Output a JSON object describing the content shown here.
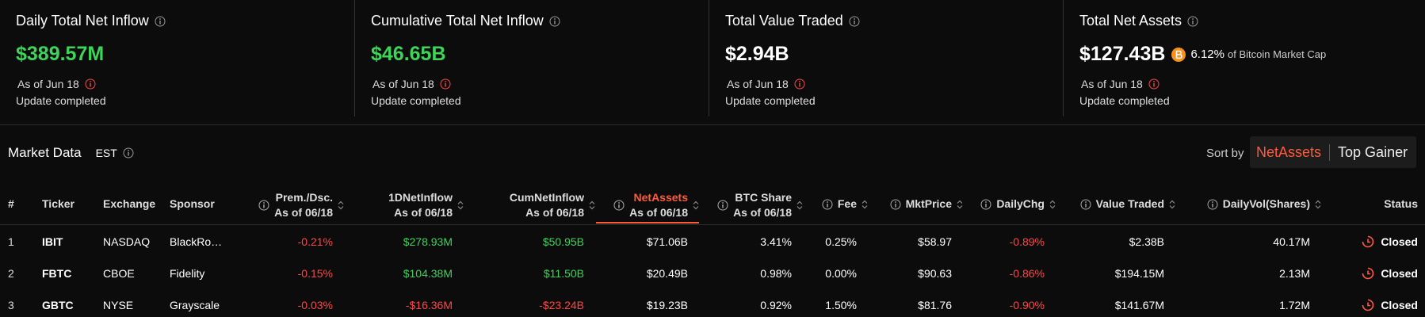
{
  "cards": [
    {
      "title": "Daily Total Net Inflow",
      "value": "$389.57M",
      "as_of": "As of Jun 18",
      "status": "Update completed"
    },
    {
      "title": "Cumulative Total Net Inflow",
      "value": "$46.65B",
      "as_of": "As of Jun 18",
      "status": "Update completed"
    },
    {
      "title": "Total Value Traded",
      "value": "$2.94B",
      "as_of": "As of Jun 18",
      "status": "Update completed"
    },
    {
      "title": "Total Net Assets",
      "value": "$127.43B",
      "btc_share": "6.12%",
      "btc_share_label": "of Bitcoin Market Cap",
      "as_of": "As of Jun 18",
      "status": "Update completed"
    }
  ],
  "market": {
    "title": "Market Data",
    "timezone": "EST",
    "sort_label": "Sort by",
    "sort_options": [
      "NetAssets",
      "Top Gainer"
    ],
    "columns": [
      {
        "name": "#"
      },
      {
        "name": "Ticker"
      },
      {
        "name": "Exchange"
      },
      {
        "name": "Sponsor"
      },
      {
        "name": "Prem./Dsc.",
        "sub": "As of 06/18"
      },
      {
        "name": "1DNetInflow",
        "sub": "As of 06/18"
      },
      {
        "name": "CumNetInflow",
        "sub": "As of 06/18"
      },
      {
        "name": "NetAssets",
        "sub": "As of 06/18"
      },
      {
        "name": "BTC Share",
        "sub": "As of 06/18"
      },
      {
        "name": "Fee"
      },
      {
        "name": "MktPrice"
      },
      {
        "name": "DailyChg"
      },
      {
        "name": "Value Traded"
      },
      {
        "name": "DailyVol(Shares)"
      },
      {
        "name": "Status"
      }
    ],
    "rows": [
      [
        "1",
        "IBIT",
        "NASDAQ",
        "BlackRo…",
        "-0.21%",
        "$278.93M",
        "$50.95B",
        "$71.06B",
        "3.41%",
        "0.25%",
        "$58.97",
        "-0.89%",
        "$2.38B",
        "40.17M",
        "Closed"
      ],
      [
        "2",
        "FBTC",
        "CBOE",
        "Fidelity",
        "-0.15%",
        "$104.38M",
        "$11.50B",
        "$20.49B",
        "0.98%",
        "0.00%",
        "$90.63",
        "-0.86%",
        "$194.15M",
        "2.13M",
        "Closed"
      ],
      [
        "3",
        "GBTC",
        "NYSE",
        "Grayscale",
        "-0.03%",
        "-$16.36M",
        "-$23.24B",
        "$19.23B",
        "0.92%",
        "1.50%",
        "$81.76",
        "-0.90%",
        "$141.67M",
        "1.72M",
        "Closed"
      ]
    ]
  }
}
